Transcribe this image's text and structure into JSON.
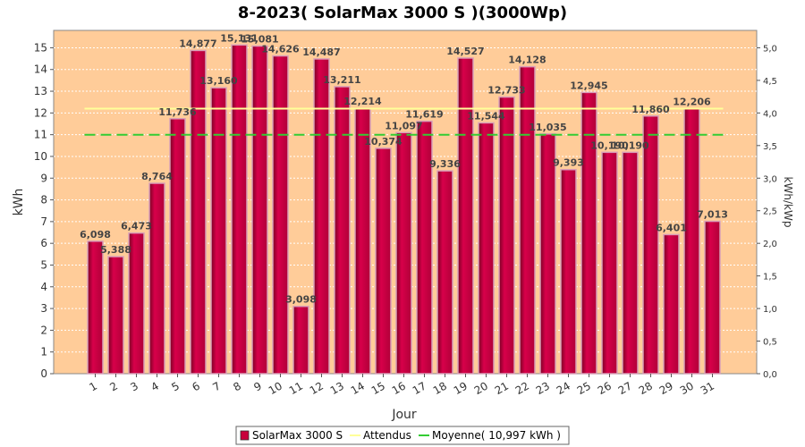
{
  "chart_data": {
    "type": "bar",
    "title": "8-2023( SolarMax 3000 S )(3000Wp)",
    "xlabel": "Jour",
    "ylabel": "kWh",
    "ylabel_right": "kWh/kWp",
    "categories": [
      "1",
      "2",
      "3",
      "4",
      "5",
      "6",
      "7",
      "8",
      "9",
      "10",
      "11",
      "12",
      "13",
      "14",
      "15",
      "16",
      "17",
      "18",
      "19",
      "20",
      "21",
      "22",
      "23",
      "24",
      "25",
      "26",
      "27",
      "28",
      "29",
      "30",
      "31"
    ],
    "series": [
      {
        "name": "SolarMax 3000 S",
        "values": [
          6.098,
          5.388,
          6.473,
          8.764,
          11.736,
          14.877,
          13.16,
          15.131,
          15.081,
          14.626,
          3.098,
          14.487,
          13.211,
          12.214,
          10.374,
          11.097,
          11.619,
          9.336,
          14.527,
          11.544,
          12.733,
          14.128,
          11.035,
          9.393,
          12.945,
          10.19,
          10.19,
          11.86,
          6.401,
          12.206,
          7.013
        ],
        "value_labels": [
          "6,098",
          "5,388",
          "6,473",
          "8,764",
          "11,736",
          "14,877",
          "13,160",
          "15,131",
          "15,081",
          "14,626",
          "3,098",
          "14,487",
          "13,211",
          "12,214",
          "10,374",
          "11,097",
          "11,619",
          "9,336",
          "14,527",
          "11,544",
          "12,733",
          "14,128",
          "11,035",
          "9,393",
          "12,945",
          "10,190",
          "10,190",
          "11,860",
          "6,401",
          "12,206",
          "7,013"
        ],
        "color": "#c8003c"
      }
    ],
    "expected": {
      "name": "Attendus",
      "value": 12.2,
      "color": "#ffff99"
    },
    "average": {
      "name": "Moyenne( 10,997 kWh )",
      "value": 10.997,
      "color": "#33cc33"
    },
    "ylim": [
      0,
      15.8
    ],
    "yticks": [
      "0",
      "1",
      "2",
      "3",
      "4",
      "5",
      "6",
      "7",
      "8",
      "9",
      "10",
      "11",
      "12",
      "13",
      "14",
      "15"
    ],
    "y2lim": [
      0,
      5.2667
    ],
    "y2ticks": [
      "0,0",
      "0,5",
      "1,0",
      "1,5",
      "2,0",
      "2,5",
      "3,0",
      "3,5",
      "4,0",
      "4,5",
      "5,0"
    ],
    "background": "#ffcc99",
    "grid": true,
    "legend": "bottom"
  }
}
